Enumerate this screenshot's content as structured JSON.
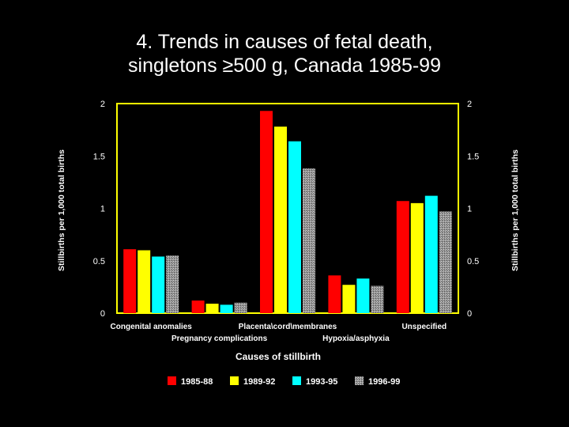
{
  "chart_data": {
    "type": "bar",
    "title_line1": "4. Trends in causes of fetal death,",
    "title_line2": "singletons ≥500 g, Canada 1985-99",
    "xlabel": "Causes of stillbirth",
    "ylabel_left": "Stillbirths per 1,000 total births",
    "ylabel_right": "Stillbirths per 1,000 total births",
    "ylim": [
      0,
      2
    ],
    "yticks": [
      "0",
      "0.5",
      "1",
      "1.5",
      "2"
    ],
    "grid": false,
    "legend_position": "bottom",
    "categories": [
      "Congenital anomalies",
      "Pregnancy complications",
      "Placenta\\cord\\membranes",
      "Hypoxia/asphyxia",
      "Unspecified"
    ],
    "series": [
      {
        "name": "1985-88",
        "color": "#ff0000",
        "values": [
          0.61,
          0.12,
          1.93,
          0.36,
          1.07
        ]
      },
      {
        "name": "1989-92",
        "color": "#ffff00",
        "values": [
          0.6,
          0.09,
          1.78,
          0.27,
          1.05
        ]
      },
      {
        "name": "1993-95",
        "color": "#00ffff",
        "values": [
          0.54,
          0.08,
          1.64,
          0.33,
          1.12
        ]
      },
      {
        "name": "1996-99",
        "color": "#a0a0a0",
        "pattern": "stipple",
        "values": [
          0.55,
          0.1,
          1.38,
          0.26,
          0.97
        ]
      }
    ],
    "axis_color": "#ffff00"
  }
}
